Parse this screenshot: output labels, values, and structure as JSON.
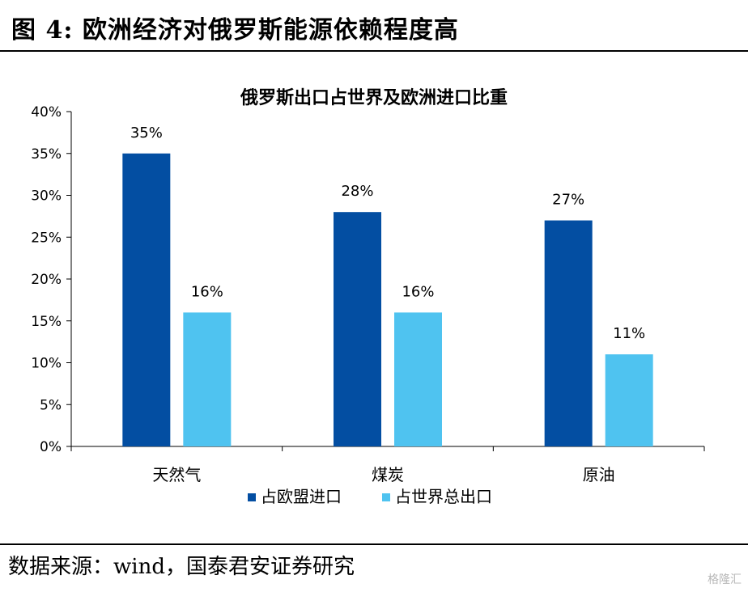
{
  "figure_title": "图 4: 欧洲经济对俄罗斯能源依赖程度高",
  "source_note": "数据来源：wind，国泰君安证券研究",
  "watermark": "格隆汇",
  "chart_data": {
    "type": "bar",
    "title": "俄罗斯出口占世界及欧洲进口比重",
    "categories": [
      "天然气",
      "煤炭",
      "原油"
    ],
    "series": [
      {
        "name": "占欧盟进口",
        "values": [
          35,
          28,
          27
        ],
        "labels": [
          "35%",
          "28%",
          "27%"
        ],
        "color": "#034EA2"
      },
      {
        "name": "占世界总出口",
        "values": [
          16,
          16,
          11
        ],
        "labels": [
          "16%",
          "16%",
          "11%"
        ],
        "color": "#4FC3F0"
      }
    ],
    "ylim": [
      0,
      40
    ],
    "yticks": [
      "0%",
      "5%",
      "10%",
      "15%",
      "20%",
      "25%",
      "30%",
      "35%",
      "40%"
    ],
    "grid": false,
    "legend": "bottom"
  }
}
